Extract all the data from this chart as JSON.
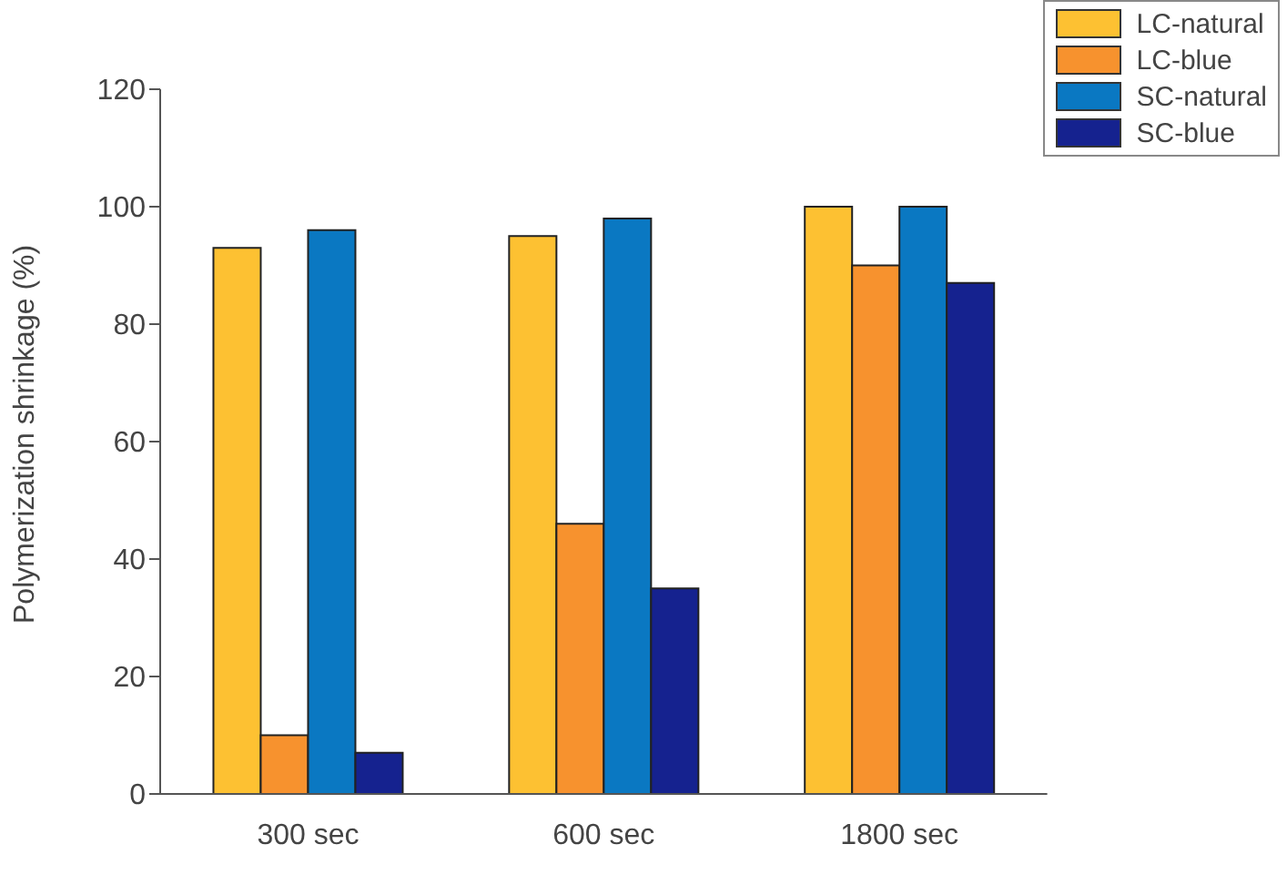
{
  "chart_data": {
    "type": "bar",
    "ylabel": "Polymerization shrinkage (%)",
    "categories": [
      "300 sec",
      "600 sec",
      "1800 sec"
    ],
    "series": [
      {
        "name": "LC-natural",
        "color": "#fdc132",
        "values": [
          93,
          95,
          100
        ]
      },
      {
        "name": "LC-blue",
        "color": "#f7922e",
        "values": [
          10,
          46,
          90
        ]
      },
      {
        "name": "SC-natural",
        "color": "#0a78c2",
        "values": [
          96,
          98,
          100
        ]
      },
      {
        "name": "SC-blue",
        "color": "#15228f",
        "values": [
          7,
          35,
          87
        ]
      }
    ],
    "ylim": [
      0,
      120
    ],
    "yticks": [
      0,
      20,
      40,
      60,
      80,
      100,
      120
    ],
    "grid": false,
    "legend": "top right"
  }
}
